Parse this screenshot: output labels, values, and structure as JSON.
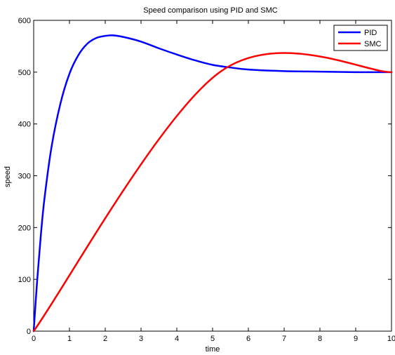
{
  "chart_data": {
    "type": "line",
    "title": "Speed comparison using PID and SMC",
    "xlabel": "time",
    "ylabel": "speed",
    "xlim": [
      0,
      10
    ],
    "ylim": [
      0,
      600
    ],
    "xticks": [
      0,
      1,
      2,
      3,
      4,
      5,
      6,
      7,
      8,
      9,
      10
    ],
    "yticks": [
      0,
      100,
      200,
      300,
      400,
      500,
      600
    ],
    "xtick_labels": [
      "0",
      "1",
      "2",
      "3",
      "4",
      "5",
      "6",
      "7",
      "8",
      "9",
      "10"
    ],
    "ytick_labels": [
      "0",
      "100",
      "200",
      "300",
      "400",
      "500",
      "600"
    ],
    "grid": false,
    "legend_position": "top-right",
    "series": [
      {
        "name": "PID",
        "color": "#0000ff",
        "x": [
          0,
          0.1,
          0.2,
          0.3,
          0.5,
          0.75,
          1.0,
          1.25,
          1.5,
          1.75,
          2.0,
          2.2,
          2.5,
          3.0,
          3.5,
          4.0,
          4.5,
          5.0,
          5.5,
          6.0,
          7.0,
          8.0,
          9.0,
          10.0
        ],
        "y": [
          0,
          100,
          185,
          255,
          356,
          440,
          497,
          533,
          555,
          566,
          570,
          571,
          568,
          559,
          546,
          534,
          523,
          514,
          509,
          505,
          502,
          501,
          500,
          500
        ]
      },
      {
        "name": "SMC",
        "color": "#ff0000",
        "x": [
          0,
          5.2,
          10
        ],
        "y": [
          0,
          500,
          500
        ]
      }
    ]
  }
}
